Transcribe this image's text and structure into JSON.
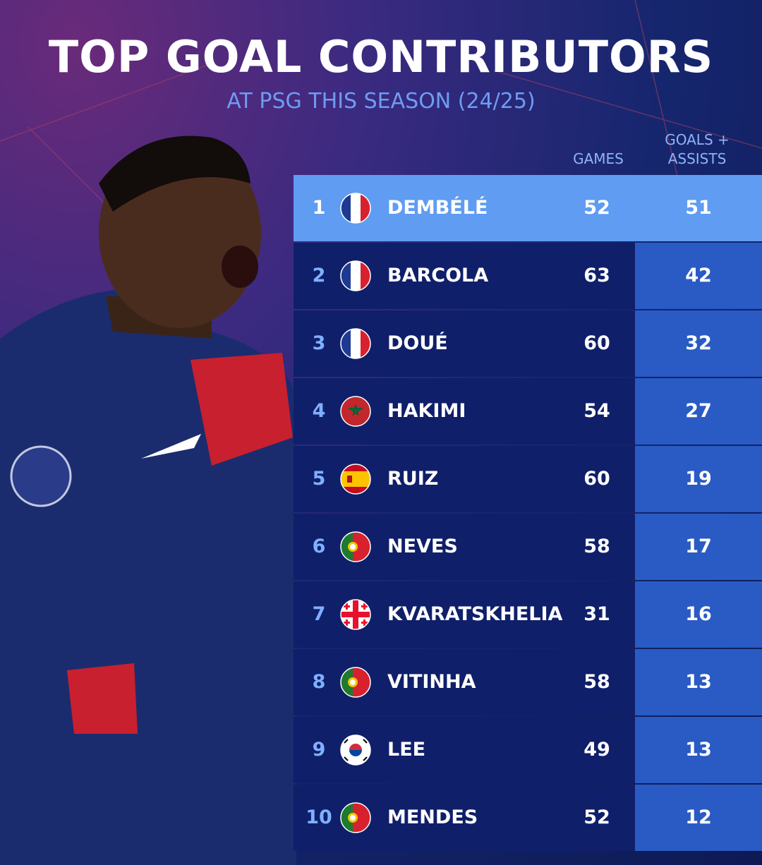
{
  "header": {
    "title": "TOP GOAL CONTRIBUTORS",
    "subtitle": "AT PSG THIS SEASON (24/25)"
  },
  "table": {
    "columns": [
      "GAMES",
      "GOALS + ASSISTS"
    ],
    "rows": [
      [
        "1",
        "DEMBÉLÉ",
        "52",
        "51"
      ],
      [
        "2",
        "BARCOLA",
        "63",
        "42"
      ],
      [
        "3",
        "DOUÉ",
        "60",
        "32"
      ],
      [
        "4",
        "HAKIMI",
        "54",
        "27"
      ],
      [
        "5",
        "RUIZ",
        "60",
        "19"
      ],
      [
        "6",
        "NEVES",
        "58",
        "17"
      ],
      [
        "7",
        "KVARATSKHELIA",
        "31",
        "16"
      ],
      [
        "8",
        "VITINHA",
        "58",
        "13"
      ],
      [
        "9",
        "LEE",
        "49",
        "13"
      ],
      [
        "10",
        "MENDES",
        "52",
        "12"
      ]
    ]
  }
}
